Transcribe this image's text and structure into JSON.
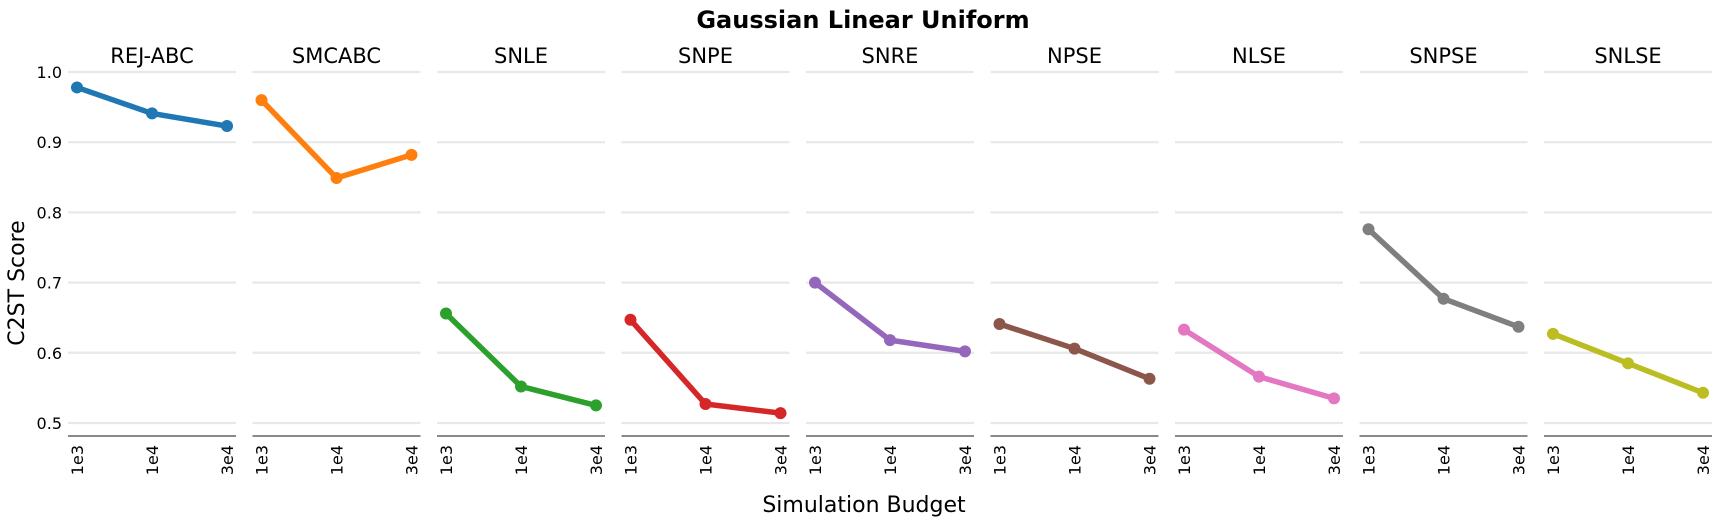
{
  "chart_data": {
    "type": "line",
    "title": "Gaussian Linear Uniform",
    "xlabel": "Simulation Budget",
    "ylabel": "C2ST Score",
    "x_tick_labels": [
      "1e3",
      "1e4",
      "3e4"
    ],
    "y_tick_labels": [
      "1.0",
      "0.9",
      "0.8",
      "0.7",
      "0.6",
      "0.5"
    ],
    "y_ticks": [
      1.0,
      0.9,
      0.8,
      0.7,
      0.6,
      0.5
    ],
    "ylim": [
      0.49,
      1.0
    ],
    "grid": true,
    "panels": [
      {
        "name": "REJ-ABC",
        "color": "#1f77b4",
        "values": [
          0.978,
          0.941,
          0.923
        ]
      },
      {
        "name": "SMCABC",
        "color": "#ff7f0e",
        "values": [
          0.96,
          0.849,
          0.882
        ]
      },
      {
        "name": "SNLE",
        "color": "#2ca02c",
        "values": [
          0.656,
          0.552,
          0.525
        ]
      },
      {
        "name": "SNPE",
        "color": "#d62728",
        "values": [
          0.647,
          0.527,
          0.514
        ]
      },
      {
        "name": "SNRE",
        "color": "#9467bd",
        "values": [
          0.7,
          0.618,
          0.602
        ]
      },
      {
        "name": "NPSE",
        "color": "#8c564b",
        "values": [
          0.641,
          0.606,
          0.563
        ]
      },
      {
        "name": "NLSE",
        "color": "#e377c2",
        "values": [
          0.633,
          0.566,
          0.535
        ]
      },
      {
        "name": "SNPSE",
        "color": "#7f7f7f",
        "values": [
          0.776,
          0.677,
          0.637
        ]
      },
      {
        "name": "SNLSE",
        "color": "#bcbd22",
        "values": [
          0.627,
          0.585,
          0.543
        ]
      }
    ]
  }
}
